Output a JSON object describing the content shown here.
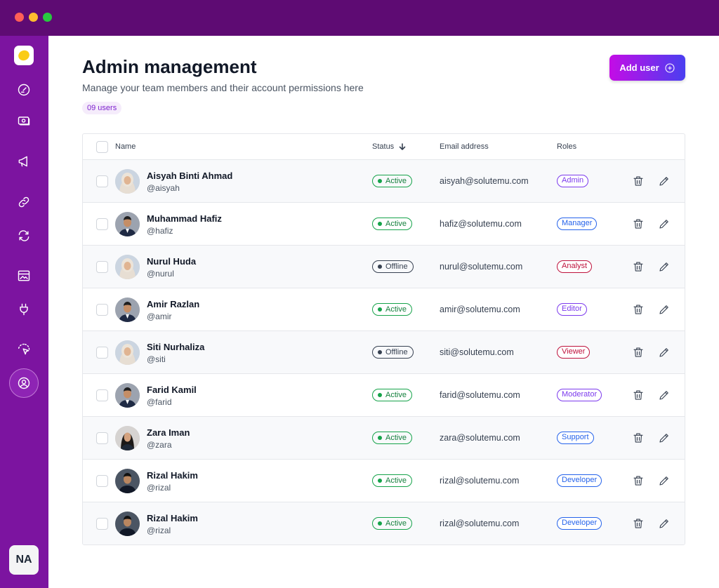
{
  "window": {
    "title": ""
  },
  "sidebar": {
    "nav": [
      {
        "icon": "gauge-icon"
      },
      {
        "icon": "cash-icon"
      },
      {
        "icon": "megaphone-icon"
      },
      {
        "icon": "link-icon"
      },
      {
        "icon": "sync-icon"
      },
      {
        "icon": "image-card-icon"
      },
      {
        "icon": "plug-icon"
      },
      {
        "icon": "cursor-select-icon"
      },
      {
        "icon": "user-circle-icon",
        "active": true
      }
    ],
    "profile_initials": "NA"
  },
  "header": {
    "title": "Admin management",
    "subtitle": "Manage your team members and their account permissions here",
    "user_count": "09 users",
    "add_button_label": "Add user"
  },
  "table": {
    "columns": {
      "name": "Name",
      "status": "Status",
      "email": "Email address",
      "roles": "Roles"
    },
    "rows": [
      {
        "name": "Aisyah Binti Ahmad",
        "handle": "@aisyah",
        "status": "Active",
        "email": "aisyah@solutemu.com",
        "role": "Admin",
        "role_color": "#7c3aed",
        "avatar": "hijab"
      },
      {
        "name": "Muhammad Hafiz",
        "handle": "@hafiz",
        "status": "Active",
        "email": "hafiz@solutemu.com",
        "role": "Manager",
        "role_color": "#2563eb",
        "avatar": "suit"
      },
      {
        "name": "Nurul Huda",
        "handle": "@nurul",
        "status": "Offline",
        "email": "nurul@solutemu.com",
        "role": "Analyst",
        "role_color": "#be123c",
        "avatar": "hijab"
      },
      {
        "name": "Amir Razlan",
        "handle": "@amir",
        "status": "Active",
        "email": "amir@solutemu.com",
        "role": "Editor",
        "role_color": "#7c3aed",
        "avatar": "suit"
      },
      {
        "name": "Siti Nurhaliza",
        "handle": "@siti",
        "status": "Offline",
        "email": "siti@solutemu.com",
        "role": "Viewer",
        "role_color": "#be123c",
        "avatar": "hijab"
      },
      {
        "name": "Farid Kamil",
        "handle": "@farid",
        "status": "Active",
        "email": "farid@solutemu.com",
        "role": "Moderator",
        "role_color": "#7c3aed",
        "avatar": "suit"
      },
      {
        "name": "Zara Iman",
        "handle": "@zara",
        "status": "Active",
        "email": "zara@solutemu.com",
        "role": "Support",
        "role_color": "#2563eb",
        "avatar": "hair"
      },
      {
        "name": "Rizal Hakim",
        "handle": "@rizal",
        "status": "Active",
        "email": "rizal@solutemu.com",
        "role": "Developer",
        "role_color": "#2563eb",
        "avatar": "casual"
      },
      {
        "name": "Rizal Hakim",
        "handle": "@rizal",
        "status": "Active",
        "email": "rizal@solutemu.com",
        "role": "Developer",
        "role_color": "#2563eb",
        "avatar": "casual"
      }
    ]
  },
  "colors": {
    "titlebar": "#5e0b73",
    "sidebar": "#7c14a0",
    "accent_start": "#c40ce6",
    "accent_end": "#4a3ff0",
    "status_active": "#16a34a",
    "status_offline": "#374151"
  }
}
